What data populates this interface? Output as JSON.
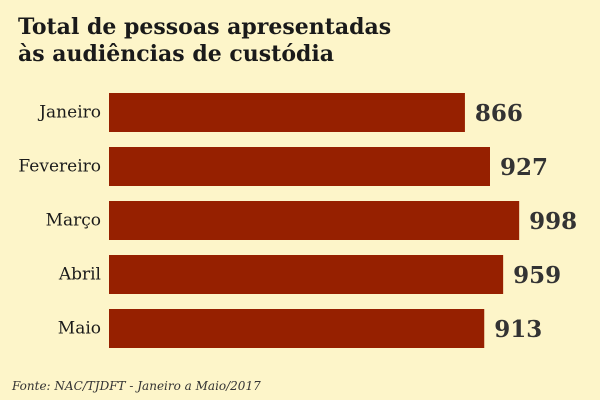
{
  "chart_data": {
    "type": "bar",
    "orientation": "horizontal",
    "title_lines": [
      "Total de pessoas apresentadas",
      "às audiências de custódia"
    ],
    "categories": [
      "Janeiro",
      "Fevereiro",
      "Março",
      "Abril",
      "Maio"
    ],
    "values": [
      866,
      927,
      998,
      959,
      913
    ],
    "value_labels": [
      "866",
      "927",
      "998",
      "959",
      "913"
    ],
    "xlim": [
      0,
      1000
    ],
    "grid": false,
    "legend": "none",
    "bar_color": "#962000",
    "background_color": "#fdf5c9",
    "source": "Fonte: NAC/TJDFT - Janeiro a Maio/2017"
  }
}
